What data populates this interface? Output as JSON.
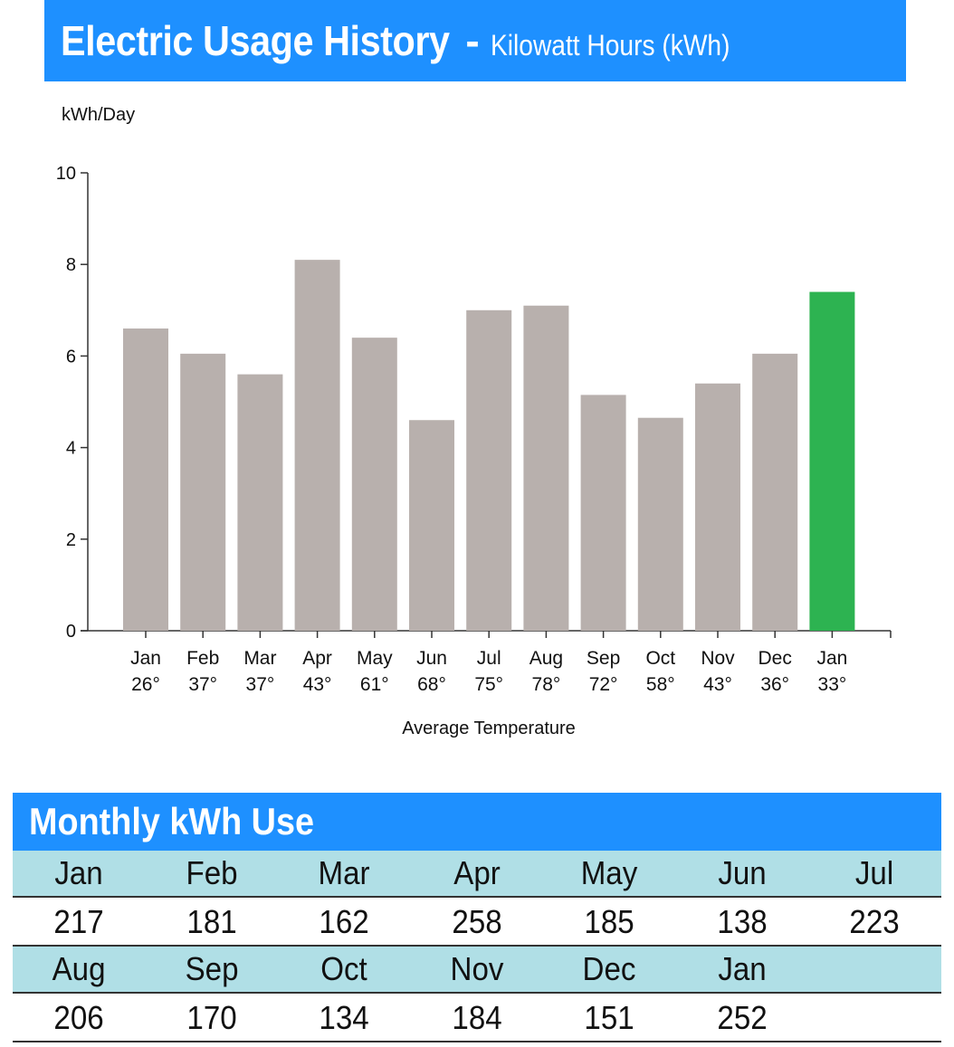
{
  "header": {
    "title": "Electric Usage History",
    "separator": "-",
    "subtitle": "Kilowatt Hours (kWh)"
  },
  "colors": {
    "brand_blue": "#1e90ff",
    "bar_gray": "#b8b0ad",
    "bar_highlight": "#2db351",
    "table_month_bg": "#b0dfe6"
  },
  "chart_data": {
    "type": "bar",
    "title": "",
    "ylabel": "kWh/Day",
    "xlabel": "Average Temperature",
    "ylim": [
      0,
      10
    ],
    "yticks": [
      0,
      2,
      4,
      6,
      8,
      10
    ],
    "grid": false,
    "categories": [
      "Jan",
      "Feb",
      "Mar",
      "Apr",
      "May",
      "Jun",
      "Jul",
      "Aug",
      "Sep",
      "Oct",
      "Nov",
      "Dec",
      "Jan"
    ],
    "temperatures": [
      "26°",
      "37°",
      "37°",
      "43°",
      "61°",
      "68°",
      "75°",
      "78°",
      "72°",
      "58°",
      "43°",
      "36°",
      "33°"
    ],
    "values": [
      6.6,
      6.05,
      5.6,
      8.1,
      6.4,
      4.6,
      7.0,
      7.1,
      5.15,
      4.65,
      5.4,
      6.05,
      7.4
    ],
    "highlight_index": 12
  },
  "table": {
    "title": "Monthly kWh Use",
    "rows": [
      {
        "months": [
          "Jan",
          "Feb",
          "Mar",
          "Apr",
          "May",
          "Jun",
          "Jul"
        ],
        "values": [
          "217",
          "181",
          "162",
          "258",
          "185",
          "138",
          "223"
        ]
      },
      {
        "months": [
          "Aug",
          "Sep",
          "Oct",
          "Nov",
          "Dec",
          "Jan",
          ""
        ],
        "values": [
          "206",
          "170",
          "134",
          "184",
          "151",
          "252",
          ""
        ]
      }
    ]
  }
}
